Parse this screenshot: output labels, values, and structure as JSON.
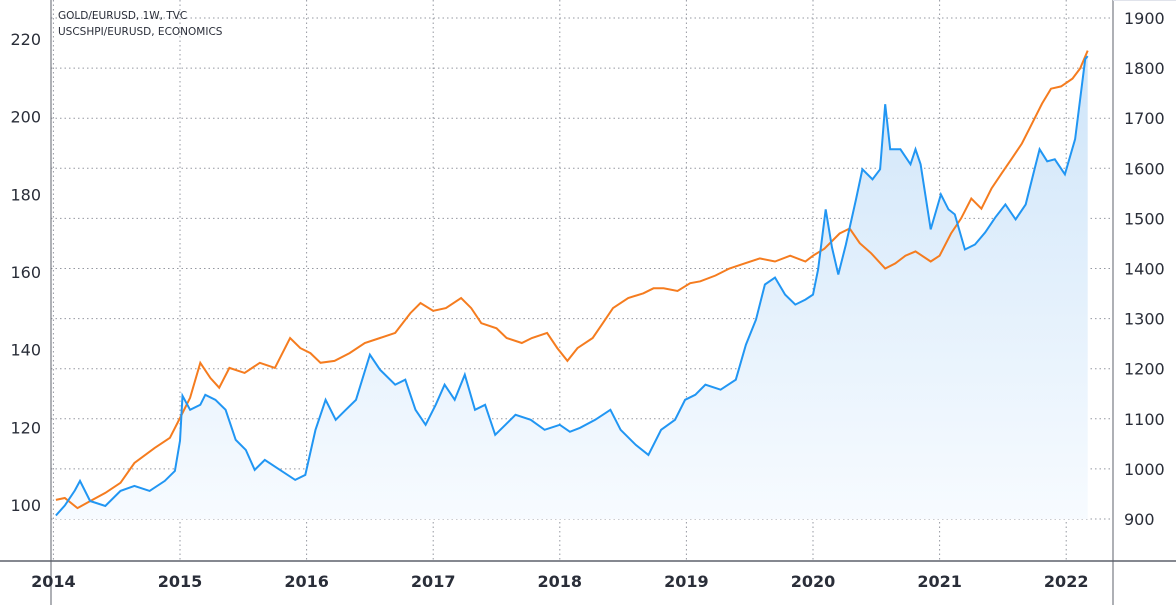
{
  "legend": {
    "series1": "GOLD/EURUSD, 1W, TVC",
    "series2": "USCSHPI/EURUSD, ECONOMICS"
  },
  "colors": {
    "gold_line": "#2196f3",
    "gold_fill_top": "#cfe5f9",
    "gold_fill_bottom": "#f7fbff",
    "hpi_line": "#f57c1f",
    "grid": "#9598a1",
    "axis": "#5d606b",
    "text": "#2a2e39"
  },
  "chart_data": {
    "type": "line",
    "title": "",
    "legend": [
      "GOLD/EURUSD, 1W, TVC",
      "USCSHPI/EURUSD, ECONOMICS"
    ],
    "xlabel": "",
    "x_ticks": [
      "2014",
      "2015",
      "2016",
      "2017",
      "2018",
      "2019",
      "2020",
      "2021",
      "2022"
    ],
    "x_tick_positions": [
      2014,
      2015,
      2016,
      2017,
      2018,
      2019,
      2020,
      2021,
      2022
    ],
    "xlim": [
      2014.02,
      2022.35
    ],
    "left_axis": {
      "ticks": [
        100,
        120,
        140,
        160,
        180,
        200,
        220
      ],
      "ylim": [
        85.0,
        224.0
      ],
      "series": "USCSHPI/EURUSD, ECONOMICS"
    },
    "right_axis": {
      "ticks": [
        900,
        1000,
        1100,
        1200,
        1300,
        1400,
        1500,
        1600,
        1700,
        1800,
        1900
      ],
      "ylim": [
        814,
        1936
      ],
      "series": "GOLD/EURUSD, 1W, TVC"
    },
    "grid": true,
    "series": [
      {
        "name": "GOLD/EURUSD, 1W, TVC",
        "axis": "right",
        "style": "area",
        "points": [
          [
            2014.02,
            907
          ],
          [
            2014.09,
            927
          ],
          [
            2014.17,
            957
          ],
          [
            2014.21,
            976
          ],
          [
            2014.29,
            936
          ],
          [
            2014.41,
            926
          ],
          [
            2014.53,
            956
          ],
          [
            2014.64,
            966
          ],
          [
            2014.76,
            956
          ],
          [
            2014.88,
            976
          ],
          [
            2014.96,
            996
          ],
          [
            2015.0,
            1056
          ],
          [
            2015.02,
            1146
          ],
          [
            2015.08,
            1118
          ],
          [
            2015.16,
            1128
          ],
          [
            2015.2,
            1148
          ],
          [
            2015.28,
            1138
          ],
          [
            2015.36,
            1118
          ],
          [
            2015.44,
            1058
          ],
          [
            2015.52,
            1038
          ],
          [
            2015.59,
            998
          ],
          [
            2015.67,
            1018
          ],
          [
            2015.79,
            998
          ],
          [
            2015.91,
            978
          ],
          [
            2015.99,
            988
          ],
          [
            2016.07,
            1078
          ],
          [
            2016.15,
            1138
          ],
          [
            2016.23,
            1098
          ],
          [
            2016.31,
            1118
          ],
          [
            2016.39,
            1138
          ],
          [
            2016.5,
            1228
          ],
          [
            2016.58,
            1198
          ],
          [
            2016.7,
            1168
          ],
          [
            2016.78,
            1178
          ],
          [
            2016.86,
            1118
          ],
          [
            2016.94,
            1088
          ],
          [
            2017.02,
            1128
          ],
          [
            2017.09,
            1168
          ],
          [
            2017.17,
            1138
          ],
          [
            2017.25,
            1188
          ],
          [
            2017.33,
            1118
          ],
          [
            2017.41,
            1128
          ],
          [
            2017.49,
            1068
          ],
          [
            2017.57,
            1088
          ],
          [
            2017.65,
            1108
          ],
          [
            2017.77,
            1098
          ],
          [
            2017.88,
            1078
          ],
          [
            2018.0,
            1088
          ],
          [
            2018.08,
            1074
          ],
          [
            2018.16,
            1082
          ],
          [
            2018.28,
            1098
          ],
          [
            2018.4,
            1118
          ],
          [
            2018.48,
            1078
          ],
          [
            2018.6,
            1048
          ],
          [
            2018.7,
            1028
          ],
          [
            2018.8,
            1078
          ],
          [
            2018.91,
            1098
          ],
          [
            2018.99,
            1138
          ],
          [
            2019.07,
            1148
          ],
          [
            2019.15,
            1168
          ],
          [
            2019.27,
            1158
          ],
          [
            2019.39,
            1178
          ],
          [
            2019.47,
            1248
          ],
          [
            2019.55,
            1298
          ],
          [
            2019.62,
            1368
          ],
          [
            2019.7,
            1382
          ],
          [
            2019.78,
            1348
          ],
          [
            2019.86,
            1328
          ],
          [
            2019.94,
            1338
          ],
          [
            2020.0,
            1348
          ],
          [
            2020.04,
            1398
          ],
          [
            2020.1,
            1518
          ],
          [
            2020.15,
            1442
          ],
          [
            2020.2,
            1388
          ],
          [
            2020.26,
            1448
          ],
          [
            2020.34,
            1538
          ],
          [
            2020.39,
            1598
          ],
          [
            2020.47,
            1578
          ],
          [
            2020.53,
            1598
          ],
          [
            2020.57,
            1728
          ],
          [
            2020.61,
            1638
          ],
          [
            2020.69,
            1638
          ],
          [
            2020.77,
            1608
          ],
          [
            2020.81,
            1638
          ],
          [
            2020.85,
            1608
          ],
          [
            2020.93,
            1478
          ],
          [
            2021.01,
            1548
          ],
          [
            2021.07,
            1518
          ],
          [
            2021.12,
            1508
          ],
          [
            2021.2,
            1438
          ],
          [
            2021.28,
            1448
          ],
          [
            2021.36,
            1472
          ],
          [
            2021.44,
            1502
          ],
          [
            2021.52,
            1528
          ],
          [
            2021.6,
            1498
          ],
          [
            2021.68,
            1528
          ],
          [
            2021.75,
            1598
          ],
          [
            2021.79,
            1638
          ],
          [
            2021.85,
            1614
          ],
          [
            2021.91,
            1618
          ],
          [
            2021.99,
            1588
          ],
          [
            2022.07,
            1658
          ],
          [
            2022.15,
            1818
          ],
          [
            2022.17,
            1824
          ]
        ]
      },
      {
        "name": "USCSHPI/EURUSD, ECONOMICS",
        "axis": "left",
        "style": "line",
        "points": [
          [
            2014.02,
            101.3
          ],
          [
            2014.09,
            101.8
          ],
          [
            2014.19,
            99.2
          ],
          [
            2014.29,
            101.0
          ],
          [
            2014.41,
            103.1
          ],
          [
            2014.53,
            105.7
          ],
          [
            2014.64,
            110.8
          ],
          [
            2014.8,
            114.7
          ],
          [
            2014.92,
            117.3
          ],
          [
            2015.0,
            122.4
          ],
          [
            2015.08,
            127.6
          ],
          [
            2015.16,
            136.6
          ],
          [
            2015.24,
            132.7
          ],
          [
            2015.31,
            130.2
          ],
          [
            2015.39,
            135.3
          ],
          [
            2015.51,
            134.0
          ],
          [
            2015.63,
            136.6
          ],
          [
            2015.75,
            135.3
          ],
          [
            2015.87,
            143.0
          ],
          [
            2015.95,
            140.4
          ],
          [
            2016.03,
            139.1
          ],
          [
            2016.11,
            136.6
          ],
          [
            2016.22,
            137.1
          ],
          [
            2016.34,
            139.1
          ],
          [
            2016.46,
            141.7
          ],
          [
            2016.58,
            143.0
          ],
          [
            2016.7,
            144.3
          ],
          [
            2016.82,
            149.4
          ],
          [
            2016.9,
            152.0
          ],
          [
            2017.0,
            150.0
          ],
          [
            2017.1,
            150.7
          ],
          [
            2017.22,
            153.3
          ],
          [
            2017.3,
            150.7
          ],
          [
            2017.38,
            146.8
          ],
          [
            2017.5,
            145.5
          ],
          [
            2017.58,
            143.0
          ],
          [
            2017.7,
            141.7
          ],
          [
            2017.78,
            143.0
          ],
          [
            2017.9,
            144.3
          ],
          [
            2017.98,
            140.4
          ],
          [
            2018.06,
            137.1
          ],
          [
            2018.14,
            140.4
          ],
          [
            2018.26,
            143.0
          ],
          [
            2018.34,
            146.8
          ],
          [
            2018.42,
            150.7
          ],
          [
            2018.54,
            153.3
          ],
          [
            2018.66,
            154.5
          ],
          [
            2018.74,
            155.8
          ],
          [
            2018.82,
            155.8
          ],
          [
            2018.93,
            155.1
          ],
          [
            2019.03,
            157.1
          ],
          [
            2019.11,
            157.6
          ],
          [
            2019.23,
            159.1
          ],
          [
            2019.34,
            160.9
          ],
          [
            2019.46,
            162.2
          ],
          [
            2019.58,
            163.5
          ],
          [
            2019.7,
            162.7
          ],
          [
            2019.82,
            164.2
          ],
          [
            2019.94,
            162.7
          ],
          [
            2020.0,
            164.2
          ],
          [
            2020.09,
            166.0
          ],
          [
            2020.21,
            169.9
          ],
          [
            2020.29,
            171.2
          ],
          [
            2020.37,
            167.4
          ],
          [
            2020.46,
            164.8
          ],
          [
            2020.57,
            160.9
          ],
          [
            2020.65,
            162.2
          ],
          [
            2020.73,
            164.2
          ],
          [
            2020.81,
            165.3
          ],
          [
            2020.93,
            162.7
          ],
          [
            2021.0,
            164.2
          ],
          [
            2021.09,
            169.9
          ],
          [
            2021.17,
            173.8
          ],
          [
            2021.25,
            178.9
          ],
          [
            2021.33,
            176.3
          ],
          [
            2021.41,
            181.5
          ],
          [
            2021.49,
            185.4
          ],
          [
            2021.57,
            189.2
          ],
          [
            2021.65,
            193.1
          ],
          [
            2021.73,
            198.2
          ],
          [
            2021.81,
            203.4
          ],
          [
            2021.88,
            207.2
          ],
          [
            2021.96,
            207.8
          ],
          [
            2022.05,
            209.8
          ],
          [
            2022.11,
            212.4
          ],
          [
            2022.17,
            217.0
          ]
        ]
      }
    ]
  }
}
